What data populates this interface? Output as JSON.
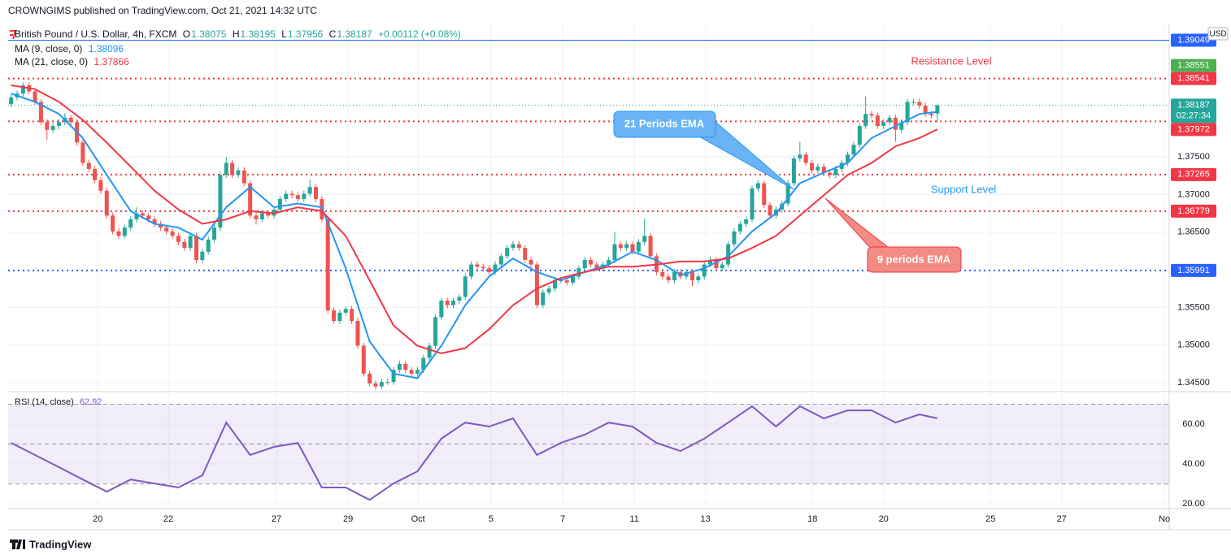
{
  "chart_data": {
    "type": "candlestick",
    "header": "CROWNGIMS published on TradingView.com, Oct 21, 2021 14:32 UTC",
    "symbol": "British Pound / U.S. Dollar, 4h, FXCM",
    "ohlc_keys": [
      "O",
      "H",
      "L",
      "C"
    ],
    "change": "+0.00112 (+0.08%)",
    "currency": "USD",
    "countdown": "02:27:34",
    "footer": "TradingView",
    "up_color": "#26a69a",
    "down_color": "#ef5350",
    "grid": true,
    "xlim": [
      -0.5,
      193.8
    ],
    "xticks": [
      {
        "value": 14.5,
        "label": "20"
      },
      {
        "value": 26.3,
        "label": "22"
      },
      {
        "value": 44.4,
        "label": "27"
      },
      {
        "value": 56.4,
        "label": "29"
      },
      {
        "value": 68.1,
        "label": "Oct"
      },
      {
        "value": 80.3,
        "label": "5"
      },
      {
        "value": 92.3,
        "label": "7"
      },
      {
        "value": 104.3,
        "label": "11"
      },
      {
        "value": 116.2,
        "label": "13"
      },
      {
        "value": 134.1,
        "label": "18"
      },
      {
        "value": 146,
        "label": "20"
      },
      {
        "value": 163.9,
        "label": "25"
      },
      {
        "value": 175.8,
        "label": "27"
      },
      {
        "value": 193,
        "label": "No"
      }
    ],
    "ylim": [
      1.34403,
      1.3926
    ],
    "yticks": [
      {
        "value": 1.375,
        "label": "1.37500"
      },
      {
        "value": 1.37,
        "label": "1.37000"
      },
      {
        "value": 1.365,
        "label": "1.36500"
      },
      {
        "value": 1.355,
        "label": "1.35500"
      },
      {
        "value": 1.35,
        "label": "1.35000"
      },
      {
        "value": 1.345,
        "label": "1.34500"
      }
    ],
    "candles": [
      [
        1.382,
        1.3833,
        1.3816,
        1.3829
      ],
      [
        1.3829,
        1.3838,
        1.3825,
        1.3834
      ],
      [
        1.3834,
        1.3849,
        1.383,
        1.3845
      ],
      [
        1.3845,
        1.3849,
        1.3833,
        1.3837
      ],
      [
        1.3837,
        1.3841,
        1.3819,
        1.3823
      ],
      [
        1.3823,
        1.3827,
        1.3792,
        1.3796
      ],
      [
        1.3796,
        1.38,
        1.3772,
        1.3786
      ],
      [
        1.3786,
        1.3795,
        1.3782,
        1.3791
      ],
      [
        1.3791,
        1.38,
        1.3787,
        1.3796
      ],
      [
        1.3796,
        1.3808,
        1.3792,
        1.3802
      ],
      [
        1.3802,
        1.3806,
        1.3792,
        1.3796
      ],
      [
        1.3796,
        1.38,
        1.3765,
        1.3769
      ],
      [
        1.3769,
        1.3773,
        1.3738,
        1.3742
      ],
      [
        1.3742,
        1.3746,
        1.373,
        1.3734
      ],
      [
        1.3734,
        1.3738,
        1.3715,
        1.3719
      ],
      [
        1.3719,
        1.3723,
        1.3701,
        1.3705
      ],
      [
        1.3705,
        1.3709,
        1.3668,
        1.3672
      ],
      [
        1.3672,
        1.3676,
        1.3647,
        1.3651
      ],
      [
        1.3651,
        1.3655,
        1.3641,
        1.3645
      ],
      [
        1.3645,
        1.366,
        1.3641,
        1.3656
      ],
      [
        1.3656,
        1.3671,
        1.3652,
        1.3667
      ],
      [
        1.3667,
        1.3683,
        1.3663,
        1.3675
      ],
      [
        1.3675,
        1.3679,
        1.3668,
        1.3672
      ],
      [
        1.3672,
        1.3676,
        1.3663,
        1.3667
      ],
      [
        1.3667,
        1.3671,
        1.3657,
        1.3661
      ],
      [
        1.3661,
        1.3665,
        1.3652,
        1.3656
      ],
      [
        1.3656,
        1.366,
        1.3647,
        1.3651
      ],
      [
        1.3651,
        1.3655,
        1.3641,
        1.3645
      ],
      [
        1.3645,
        1.3649,
        1.3633,
        1.3637
      ],
      [
        1.3637,
        1.3641,
        1.3625,
        1.3629
      ],
      [
        1.3629,
        1.3649,
        1.3625,
        1.3645
      ],
      [
        1.3645,
        1.3649,
        1.3609,
        1.3613
      ],
      [
        1.3613,
        1.3628,
        1.3609,
        1.3624
      ],
      [
        1.3624,
        1.3644,
        1.362,
        1.364
      ],
      [
        1.364,
        1.366,
        1.3636,
        1.3656
      ],
      [
        1.3656,
        1.373,
        1.3652,
        1.3726
      ],
      [
        1.3726,
        1.375,
        1.3722,
        1.3742
      ],
      [
        1.3742,
        1.3746,
        1.3722,
        1.3726
      ],
      [
        1.3726,
        1.3736,
        1.3722,
        1.3732
      ],
      [
        1.3732,
        1.3736,
        1.3711,
        1.3715
      ],
      [
        1.3715,
        1.3719,
        1.3668,
        1.3672
      ],
      [
        1.3672,
        1.3676,
        1.366,
        1.3667
      ],
      [
        1.3667,
        1.3679,
        1.3663,
        1.3675
      ],
      [
        1.3675,
        1.3679,
        1.3668,
        1.3672
      ],
      [
        1.3672,
        1.3684,
        1.3668,
        1.368
      ],
      [
        1.368,
        1.3698,
        1.3676,
        1.3694
      ],
      [
        1.3694,
        1.3705,
        1.369,
        1.3701
      ],
      [
        1.3701,
        1.3705,
        1.3695,
        1.3699
      ],
      [
        1.3699,
        1.3703,
        1.369,
        1.3694
      ],
      [
        1.3694,
        1.3705,
        1.369,
        1.3701
      ],
      [
        1.3701,
        1.372,
        1.3697,
        1.371
      ],
      [
        1.371,
        1.3714,
        1.369,
        1.3694
      ],
      [
        1.3694,
        1.3698,
        1.3663,
        1.3667
      ],
      [
        1.3667,
        1.3671,
        1.3542,
        1.3546
      ],
      [
        1.3546,
        1.355,
        1.3528,
        1.3532
      ],
      [
        1.3532,
        1.3547,
        1.3528,
        1.3543
      ],
      [
        1.3543,
        1.3552,
        1.3539,
        1.3548
      ],
      [
        1.3548,
        1.3552,
        1.3528,
        1.3532
      ],
      [
        1.3532,
        1.3536,
        1.3495,
        1.3499
      ],
      [
        1.3499,
        1.3503,
        1.3458,
        1.3462
      ],
      [
        1.3462,
        1.3466,
        1.3445,
        1.3449
      ],
      [
        1.3449,
        1.3453,
        1.3441,
        1.3445
      ],
      [
        1.3445,
        1.3455,
        1.3441,
        1.3451
      ],
      [
        1.3451,
        1.3455,
        1.3447,
        1.3451
      ],
      [
        1.3451,
        1.3471,
        1.3447,
        1.3467
      ],
      [
        1.3467,
        1.3479,
        1.3463,
        1.3475
      ],
      [
        1.3475,
        1.3479,
        1.3463,
        1.3467
      ],
      [
        1.3467,
        1.3471,
        1.3458,
        1.3462
      ],
      [
        1.3462,
        1.3471,
        1.3458,
        1.3467
      ],
      [
        1.3467,
        1.3487,
        1.3463,
        1.3483
      ],
      [
        1.3483,
        1.3503,
        1.3479,
        1.3499
      ],
      [
        1.3499,
        1.3541,
        1.3495,
        1.3537
      ],
      [
        1.3537,
        1.3563,
        1.3533,
        1.3559
      ],
      [
        1.3559,
        1.3563,
        1.3549,
        1.3553
      ],
      [
        1.3553,
        1.3563,
        1.3549,
        1.3559
      ],
      [
        1.3559,
        1.3568,
        1.3555,
        1.3564
      ],
      [
        1.3564,
        1.3595,
        1.356,
        1.3591
      ],
      [
        1.3591,
        1.3611,
        1.3587,
        1.3607
      ],
      [
        1.3607,
        1.3611,
        1.36,
        1.3604
      ],
      [
        1.3604,
        1.3608,
        1.3598,
        1.3602
      ],
      [
        1.3602,
        1.3606,
        1.3593,
        1.3597
      ],
      [
        1.3597,
        1.3611,
        1.3593,
        1.3607
      ],
      [
        1.3607,
        1.3622,
        1.3603,
        1.3618
      ],
      [
        1.3618,
        1.3633,
        1.3614,
        1.3629
      ],
      [
        1.3629,
        1.3638,
        1.3625,
        1.3634
      ],
      [
        1.3634,
        1.3638,
        1.3625,
        1.3629
      ],
      [
        1.3629,
        1.3633,
        1.3609,
        1.3613
      ],
      [
        1.3613,
        1.3617,
        1.3603,
        1.3607
      ],
      [
        1.3607,
        1.3611,
        1.3549,
        1.3553
      ],
      [
        1.3553,
        1.3574,
        1.3549,
        1.357
      ],
      [
        1.357,
        1.3579,
        1.3566,
        1.3575
      ],
      [
        1.3575,
        1.359,
        1.3571,
        1.3586
      ],
      [
        1.3586,
        1.359,
        1.3582,
        1.3586
      ],
      [
        1.3586,
        1.359,
        1.3579,
        1.3583
      ],
      [
        1.3583,
        1.3595,
        1.3579,
        1.3591
      ],
      [
        1.3591,
        1.3606,
        1.3587,
        1.3602
      ],
      [
        1.3602,
        1.3617,
        1.3598,
        1.3613
      ],
      [
        1.3613,
        1.3617,
        1.3603,
        1.3607
      ],
      [
        1.3607,
        1.3611,
        1.3598,
        1.3602
      ],
      [
        1.3602,
        1.3611,
        1.3598,
        1.3607
      ],
      [
        1.3607,
        1.3617,
        1.3603,
        1.3613
      ],
      [
        1.3613,
        1.365,
        1.3609,
        1.3634
      ],
      [
        1.3634,
        1.3638,
        1.3625,
        1.3629
      ],
      [
        1.3629,
        1.3638,
        1.3625,
        1.3634
      ],
      [
        1.3634,
        1.3638,
        1.362,
        1.3624
      ],
      [
        1.3624,
        1.3641,
        1.362,
        1.3637
      ],
      [
        1.3637,
        1.3668,
        1.3633,
        1.3645
      ],
      [
        1.3645,
        1.3649,
        1.3614,
        1.3618
      ],
      [
        1.3618,
        1.3622,
        1.3593,
        1.3597
      ],
      [
        1.3597,
        1.3601,
        1.3587,
        1.3591
      ],
      [
        1.3591,
        1.3595,
        1.3582,
        1.3586
      ],
      [
        1.3586,
        1.3601,
        1.3582,
        1.3597
      ],
      [
        1.3597,
        1.3601,
        1.3587,
        1.3591
      ],
      [
        1.3591,
        1.3601,
        1.3587,
        1.3597
      ],
      [
        1.3597,
        1.3601,
        1.3578,
        1.3586
      ],
      [
        1.3586,
        1.3595,
        1.3582,
        1.3591
      ],
      [
        1.3591,
        1.3611,
        1.3587,
        1.3607
      ],
      [
        1.3607,
        1.3617,
        1.3603,
        1.3613
      ],
      [
        1.3613,
        1.3617,
        1.3598,
        1.3602
      ],
      [
        1.3602,
        1.3611,
        1.3598,
        1.3607
      ],
      [
        1.3607,
        1.3638,
        1.3603,
        1.3634
      ],
      [
        1.3634,
        1.3655,
        1.363,
        1.3651
      ],
      [
        1.3651,
        1.3665,
        1.3647,
        1.3661
      ],
      [
        1.3661,
        1.3671,
        1.3657,
        1.3667
      ],
      [
        1.3667,
        1.3712,
        1.3663,
        1.3708
      ],
      [
        1.3708,
        1.3719,
        1.3704,
        1.3715
      ],
      [
        1.3715,
        1.3719,
        1.3682,
        1.3686
      ],
      [
        1.3686,
        1.369,
        1.3668,
        1.3672
      ],
      [
        1.3672,
        1.3684,
        1.3668,
        1.368
      ],
      [
        1.368,
        1.3692,
        1.3676,
        1.3688
      ],
      [
        1.3688,
        1.3719,
        1.3684,
        1.3715
      ],
      [
        1.3715,
        1.3752,
        1.3711,
        1.3748
      ],
      [
        1.3748,
        1.377,
        1.3744,
        1.3753
      ],
      [
        1.3753,
        1.3757,
        1.3738,
        1.3742
      ],
      [
        1.3742,
        1.3746,
        1.3728,
        1.3732
      ],
      [
        1.3732,
        1.3741,
        1.3728,
        1.3737
      ],
      [
        1.3737,
        1.3741,
        1.3725,
        1.3729
      ],
      [
        1.3729,
        1.3733,
        1.3722,
        1.3726
      ],
      [
        1.3726,
        1.3738,
        1.3722,
        1.3734
      ],
      [
        1.3734,
        1.3746,
        1.373,
        1.3742
      ],
      [
        1.3742,
        1.3757,
        1.3738,
        1.3753
      ],
      [
        1.3753,
        1.377,
        1.3749,
        1.3766
      ],
      [
        1.3766,
        1.3795,
        1.3762,
        1.3791
      ],
      [
        1.3791,
        1.383,
        1.3787,
        1.3807
      ],
      [
        1.3807,
        1.3811,
        1.3801,
        1.3805
      ],
      [
        1.3805,
        1.3809,
        1.3787,
        1.3791
      ],
      [
        1.3791,
        1.38,
        1.3787,
        1.3796
      ],
      [
        1.3796,
        1.3806,
        1.3792,
        1.3802
      ],
      [
        1.3802,
        1.3806,
        1.377,
        1.3786
      ],
      [
        1.3786,
        1.38,
        1.3782,
        1.3796
      ],
      [
        1.3796,
        1.3827,
        1.3792,
        1.3823
      ],
      [
        1.3823,
        1.3827,
        1.3819,
        1.3823
      ],
      [
        1.3823,
        1.3827,
        1.3814,
        1.3818
      ],
      [
        1.3818,
        1.3822,
        1.3803,
        1.3807
      ],
      [
        1.3807,
        1.3811,
        1.3801,
        1.3805
      ],
      [
        1.38075,
        1.38195,
        1.37956,
        1.38187
      ]
    ],
    "indicators": [
      {
        "name": "MA (9, close, 0)",
        "color": "#2196f3",
        "x": [
          0,
          4,
          8,
          12,
          16,
          20,
          24,
          28,
          32,
          36,
          40,
          44,
          48,
          52,
          56,
          60,
          64,
          68,
          72,
          76,
          80,
          84,
          88,
          92,
          96,
          100,
          104,
          108,
          112,
          116,
          120,
          124,
          128,
          132,
          136,
          140,
          144,
          148,
          152,
          155
        ],
        "values": [
          1.3834,
          1.3823,
          1.3807,
          1.3775,
          1.3726,
          1.3678,
          1.3661,
          1.3656,
          1.364,
          1.3683,
          1.371,
          1.3683,
          1.3688,
          1.3683,
          1.3602,
          1.3505,
          1.3462,
          1.3456,
          1.3499,
          1.3553,
          1.3591,
          1.3615,
          1.3597,
          1.3586,
          1.3597,
          1.3607,
          1.3624,
          1.3613,
          1.3593,
          1.3602,
          1.3618,
          1.3651,
          1.3675,
          1.3715,
          1.3729,
          1.3742,
          1.3775,
          1.3791,
          1.3807,
          1.38096
        ]
      },
      {
        "name": "MA (21, close, 0)",
        "color": "#f23645",
        "x": [
          0,
          4,
          8,
          12,
          16,
          20,
          24,
          28,
          32,
          36,
          40,
          44,
          48,
          52,
          56,
          60,
          64,
          68,
          72,
          76,
          80,
          84,
          88,
          92,
          96,
          100,
          104,
          108,
          112,
          116,
          120,
          124,
          128,
          132,
          136,
          140,
          144,
          148,
          152,
          155
        ],
        "values": [
          1.3845,
          1.384,
          1.3823,
          1.3799,
          1.3769,
          1.3737,
          1.3705,
          1.368,
          1.3661,
          1.3667,
          1.3678,
          1.3675,
          1.3683,
          1.3678,
          1.3645,
          1.3586,
          1.3526,
          1.3499,
          1.3489,
          1.3496,
          1.3521,
          1.3553,
          1.3575,
          1.3589,
          1.3597,
          1.3604,
          1.3604,
          1.3607,
          1.3611,
          1.3611,
          1.3615,
          1.3629,
          1.3645,
          1.3672,
          1.3699,
          1.3726,
          1.3742,
          1.3764,
          1.3775,
          1.37866
        ]
      }
    ],
    "levels": [
      {
        "value": 1.39049,
        "color": "#2962ff",
        "line": "solid"
      },
      {
        "value": 1.38551,
        "color": "#4caf50",
        "line": "none"
      },
      {
        "value": 1.38541,
        "color": "#f23645",
        "line": "dotted"
      },
      {
        "value": 1.37972,
        "color": "#f23645",
        "line": "dotted"
      },
      {
        "value": 1.37265,
        "color": "#f23645",
        "line": "dotted"
      },
      {
        "value": 1.36779,
        "color": "#f23645",
        "line": "dotted"
      },
      {
        "value": 1.35991,
        "color": "#2962ff",
        "line": "dotted"
      }
    ],
    "annotations": [
      {
        "text": "Resistance Level",
        "color": "#f23645"
      },
      {
        "text": "Support Level",
        "color": "#2196f3"
      },
      {
        "text": "21 Periods EMA",
        "color": "#2196f3"
      },
      {
        "text": "9 periods EMA",
        "color": "#f23645"
      }
    ],
    "rsi": {
      "name": "RSI (14, close)",
      "color": "#7e57c2",
      "ylim": [
        18,
        75.1
      ],
      "yticks": [
        {
          "value": 60,
          "label": "60.00"
        },
        {
          "value": 40,
          "label": "40.00"
        },
        {
          "value": 20,
          "label": "20.00"
        }
      ],
      "levels": [
        70,
        50,
        30
      ],
      "x": [
        0,
        4,
        8,
        12,
        16,
        20,
        24,
        28,
        32,
        36,
        40,
        44,
        48,
        52,
        56,
        60,
        64,
        68,
        72,
        76,
        80,
        84,
        88,
        92,
        96,
        100,
        104,
        108,
        112,
        116,
        120,
        124,
        128,
        132,
        136,
        140,
        144,
        148,
        152,
        155
      ],
      "values": [
        50.6,
        44.5,
        38.4,
        32.2,
        26.1,
        32.2,
        30.2,
        28.2,
        34.3,
        60.8,
        44.5,
        48.6,
        50.6,
        28.2,
        28.2,
        22.0,
        30.2,
        36.3,
        52.7,
        60.8,
        58.8,
        62.9,
        44.5,
        50.6,
        54.7,
        60.8,
        58.8,
        50.6,
        46.5,
        52.7,
        60.8,
        69.0,
        58.8,
        69.0,
        62.9,
        66.9,
        66.9,
        60.8,
        64.9,
        62.92
      ]
    }
  }
}
